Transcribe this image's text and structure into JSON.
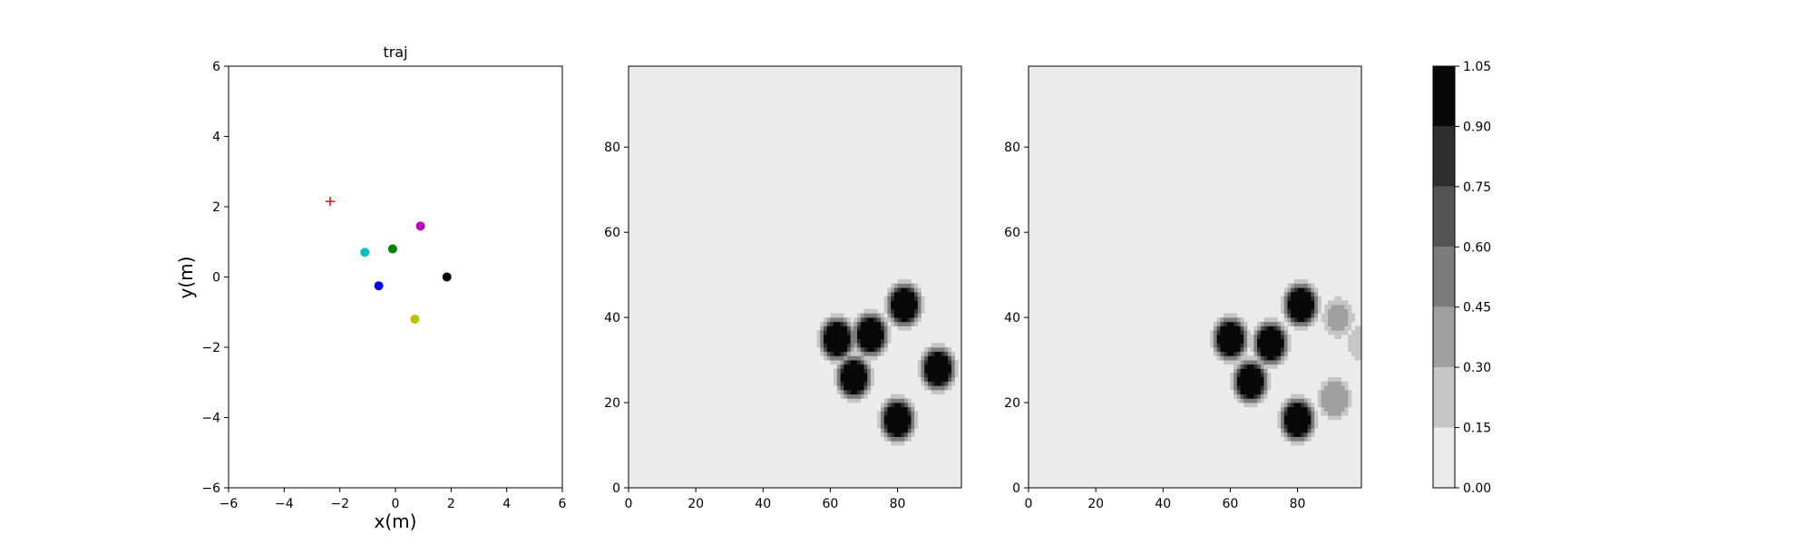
{
  "chart_data": [
    {
      "type": "scatter",
      "title": "traj",
      "xlabel": "x(m)",
      "ylabel": "y(m)",
      "xlim": [
        -6,
        6
      ],
      "ylim": [
        -6,
        6
      ],
      "xticks": [
        "−6",
        "−4",
        "−2",
        "0",
        "2",
        "4",
        "6"
      ],
      "yticks": [
        "−6",
        "−4",
        "−2",
        "0",
        "2",
        "4",
        "6"
      ],
      "grid": false,
      "series": [
        {
          "marker": "plus",
          "color": "#ff0000",
          "points": [
            [
              -2.35,
              2.15
            ]
          ]
        },
        {
          "marker": "dot",
          "color": "#bf00bf",
          "points": [
            [
              0.9,
              1.45
            ]
          ]
        },
        {
          "marker": "dot",
          "color": "#00bfbf",
          "points": [
            [
              -1.1,
              0.7
            ]
          ]
        },
        {
          "marker": "dot",
          "color": "#008000",
          "points": [
            [
              -0.1,
              0.8
            ]
          ]
        },
        {
          "marker": "dot",
          "color": "#000000",
          "points": [
            [
              1.85,
              0.0
            ]
          ]
        },
        {
          "marker": "dot",
          "color": "#0000ff",
          "points": [
            [
              -0.6,
              -0.25
            ]
          ]
        },
        {
          "marker": "dot",
          "color": "#bfbf00",
          "points": [
            [
              0.7,
              -1.2
            ]
          ]
        }
      ]
    },
    {
      "type": "heatmap",
      "title": "",
      "xlim": [
        0,
        99
      ],
      "ylim": [
        0,
        99
      ],
      "xticks": [
        "0",
        "20",
        "40",
        "60",
        "80"
      ],
      "yticks": [
        "0",
        "20",
        "40",
        "60",
        "80"
      ],
      "background_value": 0.0,
      "blobs": [
        {
          "x": 62,
          "y": 35,
          "value": 1.0
        },
        {
          "x": 72,
          "y": 36,
          "value": 1.0
        },
        {
          "x": 82,
          "y": 43,
          "value": 1.0
        },
        {
          "x": 67,
          "y": 26,
          "value": 1.0
        },
        {
          "x": 92,
          "y": 28,
          "value": 1.0
        },
        {
          "x": 80,
          "y": 16,
          "value": 1.0
        }
      ]
    },
    {
      "type": "heatmap",
      "title": "",
      "xlim": [
        0,
        99
      ],
      "ylim": [
        0,
        99
      ],
      "xticks": [
        "0",
        "20",
        "40",
        "60",
        "80"
      ],
      "yticks": [
        "0",
        "20",
        "40",
        "60",
        "80"
      ],
      "background_value": 0.0,
      "blobs": [
        {
          "x": 81,
          "y": 43,
          "value": 1.0
        },
        {
          "x": 60,
          "y": 35,
          "value": 1.0
        },
        {
          "x": 72,
          "y": 34,
          "value": 1.0
        },
        {
          "x": 66,
          "y": 25,
          "value": 1.0
        },
        {
          "x": 80,
          "y": 16,
          "value": 1.0
        },
        {
          "x": 91,
          "y": 21,
          "value": 0.4
        },
        {
          "x": 92,
          "y": 40,
          "value": 0.3
        },
        {
          "x": 99,
          "y": 34,
          "value": 0.2
        }
      ]
    }
  ],
  "colorbar": {
    "min": 0.0,
    "max": 1.05,
    "ticks": [
      "0.00",
      "0.15",
      "0.30",
      "0.45",
      "0.60",
      "0.75",
      "0.90",
      "1.05"
    ],
    "levels": [
      0.0,
      0.15,
      0.3,
      0.45,
      0.6,
      0.75,
      0.9,
      1.05
    ],
    "colors": [
      "#ebebeb",
      "#c6c6c6",
      "#a0a0a0",
      "#7b7b7b",
      "#545454",
      "#2e2e2e",
      "#080808"
    ]
  }
}
